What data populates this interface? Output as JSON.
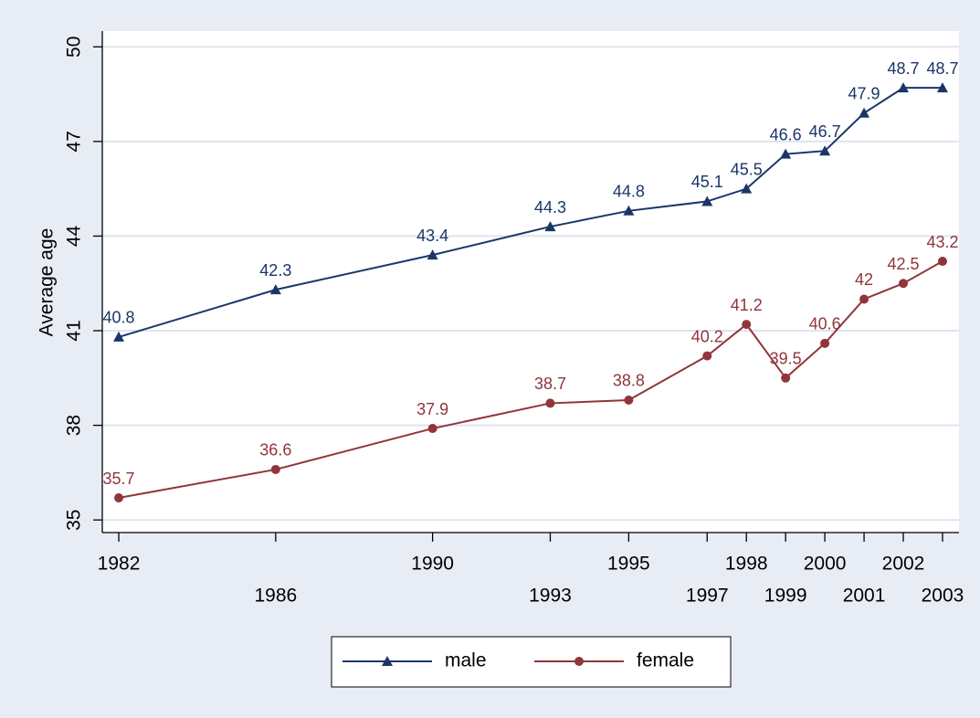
{
  "chart_data": {
    "type": "line",
    "y_label": "Average age",
    "x": [
      1982,
      1986,
      1990,
      1993,
      1995,
      1997,
      1998,
      1999,
      2000,
      2001,
      2002,
      2003
    ],
    "series": [
      {
        "name": "male",
        "color": "#1a3668",
        "marker": "triangle",
        "values": [
          40.8,
          42.3,
          43.4,
          44.3,
          44.8,
          45.1,
          45.5,
          46.6,
          46.7,
          47.9,
          48.7,
          48.7
        ]
      },
      {
        "name": "female",
        "color": "#90353b",
        "marker": "circle",
        "values": [
          35.7,
          36.6,
          37.9,
          38.7,
          38.8,
          40.2,
          41.2,
          39.5,
          40.6,
          42,
          42.5,
          43.2
        ]
      }
    ],
    "xlim": [
      1981.58,
      2003.42
    ],
    "xticks": [
      1982,
      1986,
      1990,
      1993,
      1995,
      1997,
      1998,
      1999,
      2000,
      2001,
      2002,
      2003
    ],
    "ylim": [
      34.6,
      50.5
    ],
    "yticks": [
      35,
      38,
      41,
      44,
      47,
      50
    ],
    "grid": true,
    "legend": "bottom"
  }
}
